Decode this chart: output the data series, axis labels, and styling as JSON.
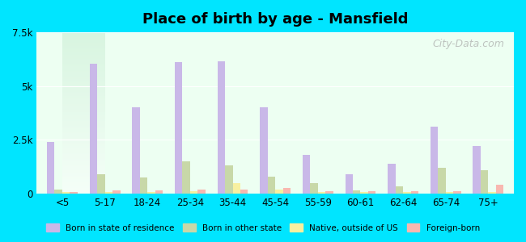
{
  "title": "Place of birth by age - Mansfield",
  "categories": [
    "<5",
    "5-17",
    "18-24",
    "25-34",
    "35-44",
    "45-54",
    "55-59",
    "60-61",
    "62-64",
    "65-74",
    "75+"
  ],
  "series": {
    "Born in state of residence": [
      2400,
      6050,
      4000,
      6100,
      6150,
      4000,
      1800,
      900,
      1400,
      3100,
      2200
    ],
    "Born in other state": [
      200,
      900,
      750,
      1500,
      1300,
      800,
      500,
      150,
      350,
      1200,
      1100
    ],
    "Native, outside of US": [
      80,
      80,
      70,
      100,
      500,
      200,
      80,
      80,
      80,
      80,
      80
    ],
    "Foreign-born": [
      80,
      150,
      150,
      200,
      200,
      250,
      100,
      100,
      100,
      100,
      400
    ]
  },
  "colors": {
    "Born in state of residence": "#c9b8e8",
    "Born in other state": "#c8d8a8",
    "Native, outside of US": "#f8f0a0",
    "Foreign-born": "#f8b8b0"
  },
  "ylim": [
    0,
    7500
  ],
  "yticks": [
    0,
    2500,
    5000,
    7500
  ],
  "ytick_labels": [
    "0",
    "2.5k",
    "5k",
    "7.5k"
  ],
  "background_color": "#e8fff8",
  "plot_bg_gradient_top": "#e0ffe8",
  "plot_bg_gradient_bottom": "#f8fff4",
  "outer_bg": "#00e5ff",
  "bar_width": 0.18,
  "watermark": "City-Data.com"
}
